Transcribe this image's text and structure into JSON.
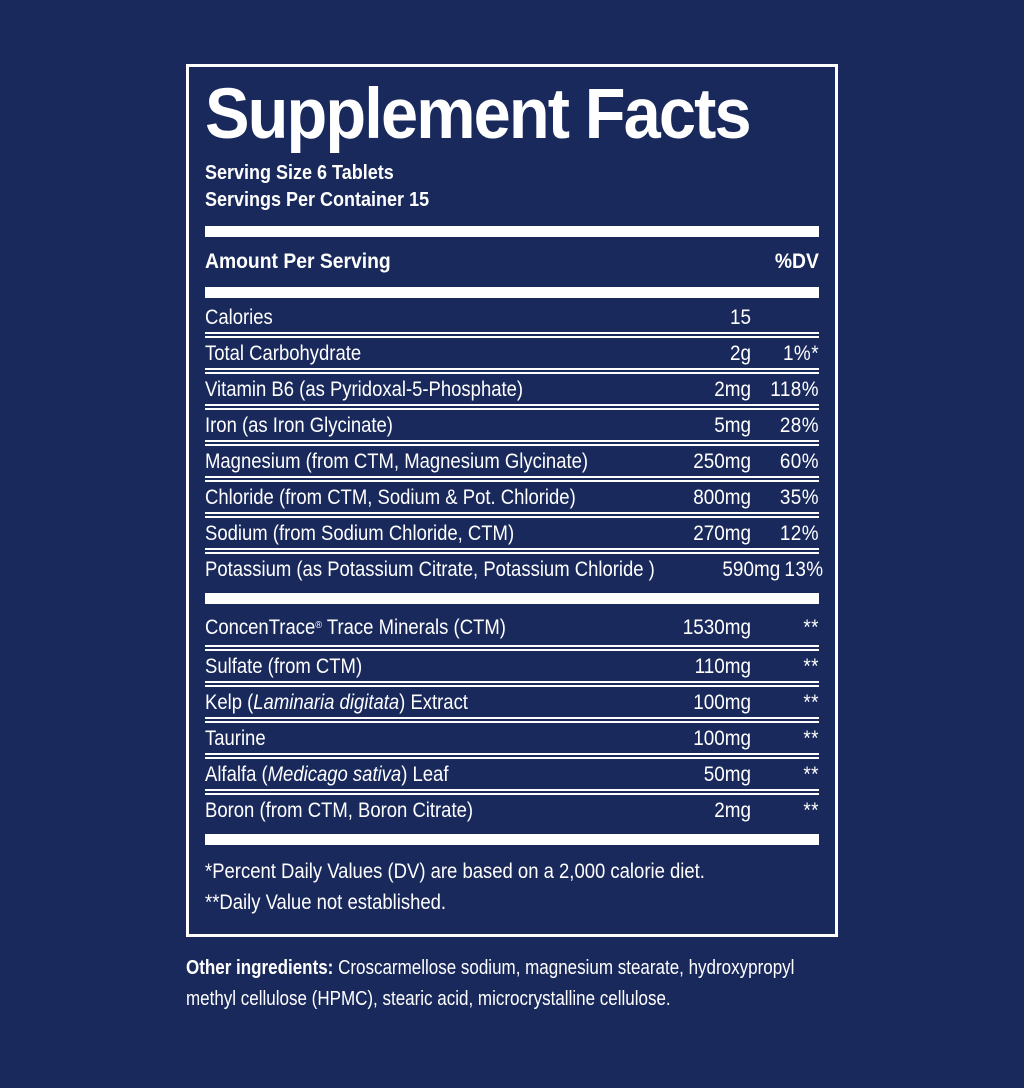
{
  "colors": {
    "background": "#19295c",
    "foreground": "#ffffff"
  },
  "panel": {
    "title": "Supplement Facts",
    "serving_size": "Serving Size 6 Tablets",
    "servings_per_container": "Servings Per Container 15",
    "header": {
      "amount_label": "Amount Per Serving",
      "dv_label": "%DV"
    },
    "sections": [
      {
        "rows": [
          {
            "label_parts": [
              {
                "text": "Calories"
              }
            ],
            "amount": "15",
            "dv": ""
          },
          {
            "label_parts": [
              {
                "text": "Total Carbohydrate"
              }
            ],
            "amount": "2g",
            "dv": "1%*"
          },
          {
            "label_parts": [
              {
                "text": "Vitamin B6 (as Pyridoxal-5-Phosphate)"
              }
            ],
            "amount": "2mg",
            "dv": "118%"
          },
          {
            "label_parts": [
              {
                "text": "Iron (as Iron Glycinate)"
              }
            ],
            "amount": "5mg",
            "dv": "28%"
          },
          {
            "label_parts": [
              {
                "text": "Magnesium (from CTM, Magnesium Glycinate)"
              }
            ],
            "amount": "250mg",
            "dv": "60%"
          },
          {
            "label_parts": [
              {
                "text": "Chloride (from CTM, Sodium & Pot. Chloride)"
              }
            ],
            "amount": "800mg",
            "dv": "35%"
          },
          {
            "label_parts": [
              {
                "text": "Sodium (from Sodium Chloride, CTM)"
              }
            ],
            "amount": "270mg",
            "dv": "12%"
          },
          {
            "label_parts": [
              {
                "text": "Potassium (as Potassium Citrate, Potassium Chloride )"
              }
            ],
            "amount": "590mg",
            "dv": "13%"
          }
        ]
      },
      {
        "rows": [
          {
            "label_parts": [
              {
                "text": "ConcenTrace"
              },
              {
                "text": "®",
                "sup": true
              },
              {
                "text": " Trace Minerals (CTM)"
              }
            ],
            "amount": "1530mg",
            "dv": "**"
          },
          {
            "label_parts": [
              {
                "text": "Sulfate (from CTM)"
              }
            ],
            "amount": "110mg",
            "dv": "**"
          },
          {
            "label_parts": [
              {
                "text": "Kelp ("
              },
              {
                "text": "Laminaria digitata",
                "italic": true
              },
              {
                "text": ") Extract"
              }
            ],
            "amount": "100mg",
            "dv": "**"
          },
          {
            "label_parts": [
              {
                "text": "Taurine"
              }
            ],
            "amount": "100mg",
            "dv": "**"
          },
          {
            "label_parts": [
              {
                "text": "Alfalfa ("
              },
              {
                "text": "Medicago sativa",
                "italic": true
              },
              {
                "text": ") Leaf"
              }
            ],
            "amount": "50mg",
            "dv": "**"
          },
          {
            "label_parts": [
              {
                "text": "Boron (from CTM, Boron Citrate)"
              }
            ],
            "amount": "2mg",
            "dv": "**"
          }
        ]
      }
    ],
    "footnotes": [
      "*Percent Daily Values (DV) are based on a 2,000 calorie diet.",
      "**Daily Value not established."
    ]
  },
  "other_ingredients": {
    "label": "Other ingredients:",
    "line1": " Croscarmellose sodium, magnesium stearate, hydroxypropyl",
    "line2": "methyl cellulose (HPMC), stearic acid, microcrystalline cellulose."
  }
}
